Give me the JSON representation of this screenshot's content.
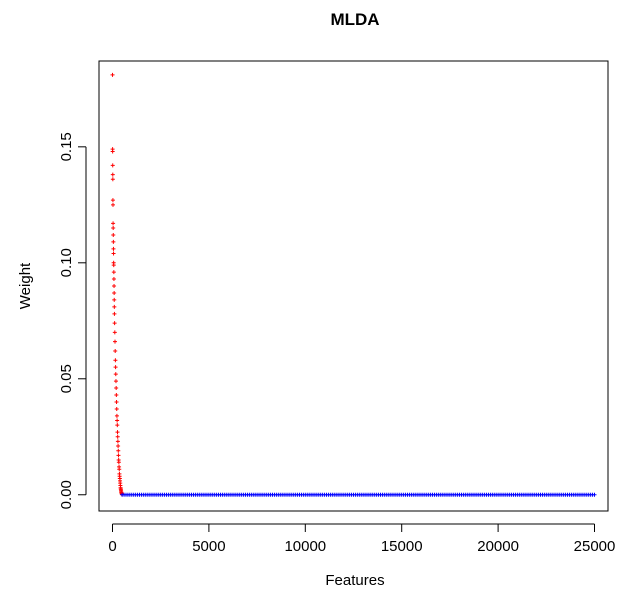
{
  "chart_data": {
    "type": "scatter",
    "title": "MLDA",
    "xlabel": "Features",
    "ylabel": "Weight",
    "xlim": [
      -700,
      25700
    ],
    "ylim": [
      -0.007,
      0.187
    ],
    "x_ticks": [
      0,
      5000,
      10000,
      15000,
      20000,
      25000
    ],
    "y_ticks": [
      0.0,
      0.05,
      0.1,
      0.15
    ],
    "y_tick_labels": [
      "0.00",
      "0.05",
      "0.10",
      "0.15"
    ],
    "grid": false,
    "legend": "none",
    "series": [
      {
        "color": "#ff0000",
        "marker": "+",
        "x_range": [
          1,
          500
        ],
        "points": [
          [
            1,
            0.181
          ],
          [
            5,
            0.149
          ],
          [
            8,
            0.148
          ],
          [
            12,
            0.142
          ],
          [
            15,
            0.138
          ],
          [
            18,
            0.136
          ],
          [
            22,
            0.127
          ],
          [
            26,
            0.125
          ],
          [
            30,
            0.117
          ],
          [
            35,
            0.115
          ],
          [
            40,
            0.112
          ],
          [
            45,
            0.109
          ],
          [
            50,
            0.106
          ],
          [
            55,
            0.104
          ],
          [
            60,
            0.1
          ],
          [
            65,
            0.099
          ],
          [
            70,
            0.096
          ],
          [
            75,
            0.093
          ],
          [
            80,
            0.09
          ],
          [
            85,
            0.087
          ],
          [
            90,
            0.084
          ],
          [
            95,
            0.081
          ],
          [
            100,
            0.078
          ],
          [
            110,
            0.074
          ],
          [
            120,
            0.07
          ],
          [
            130,
            0.066
          ],
          [
            140,
            0.062
          ],
          [
            150,
            0.058
          ],
          [
            160,
            0.055
          ],
          [
            170,
            0.052
          ],
          [
            180,
            0.049
          ],
          [
            190,
            0.046
          ],
          [
            200,
            0.043
          ],
          [
            210,
            0.04
          ],
          [
            220,
            0.037
          ],
          [
            230,
            0.034
          ],
          [
            240,
            0.032
          ],
          [
            250,
            0.03
          ],
          [
            260,
            0.027
          ],
          [
            270,
            0.025
          ],
          [
            280,
            0.023
          ],
          [
            290,
            0.021
          ],
          [
            300,
            0.019
          ],
          [
            310,
            0.017
          ],
          [
            320,
            0.015
          ],
          [
            330,
            0.014
          ],
          [
            340,
            0.012
          ],
          [
            350,
            0.011
          ],
          [
            360,
            0.009
          ],
          [
            370,
            0.008
          ],
          [
            380,
            0.007
          ],
          [
            390,
            0.006
          ],
          [
            400,
            0.005
          ],
          [
            410,
            0.004
          ],
          [
            420,
            0.003
          ],
          [
            430,
            0.0025
          ],
          [
            440,
            0.002
          ],
          [
            450,
            0.0015
          ],
          [
            460,
            0.001
          ],
          [
            470,
            0.0007
          ],
          [
            480,
            0.0004
          ],
          [
            490,
            0.0002
          ],
          [
            500,
            0.0001
          ]
        ]
      },
      {
        "color": "#0000ff",
        "marker": "+",
        "x_range": [
          500,
          25000
        ],
        "y": 0.0
      }
    ]
  }
}
